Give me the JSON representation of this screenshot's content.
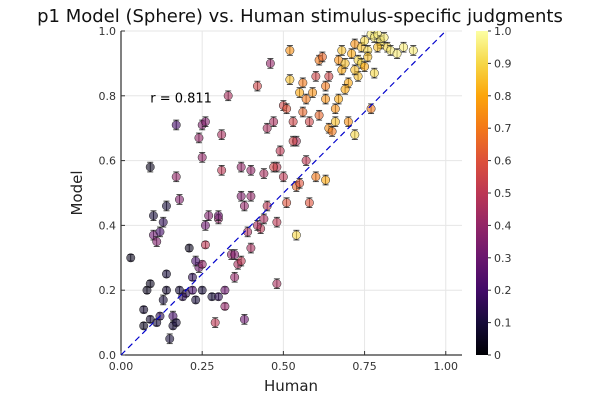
{
  "chart_data": {
    "type": "scatter",
    "title": "p1 Model (Sphere) vs. Human stimulus-specific judgments",
    "xlabel": "Human",
    "ylabel": "Model",
    "xlim": [
      0,
      1.05
    ],
    "ylim": [
      0,
      1
    ],
    "xticks": [
      "0.00",
      "0.25",
      "0.50",
      "0.75",
      "1.00"
    ],
    "yticks": [
      "0.0",
      "0.2",
      "0.4",
      "0.6",
      "0.8",
      "1.0"
    ],
    "colorbar": {
      "range": [
        0,
        1
      ],
      "ticks": [
        "0",
        "0.1",
        "0.2",
        "0.3",
        "0.4",
        "0.5",
        "0.6",
        "0.7",
        "0.8",
        "0.9",
        "1.0"
      ],
      "colormap": "inferno"
    },
    "grid": true,
    "legend": "none",
    "reference_line": {
      "style": "dashed",
      "color": "#0000cc",
      "from": [
        0,
        0
      ],
      "to": [
        1,
        1
      ]
    },
    "annotation": {
      "text": "r = 0.811",
      "x": 0.09,
      "y": 0.78
    },
    "points_fields": [
      "x",
      "y",
      "color_value",
      "error"
    ],
    "points": [
      [
        0.03,
        0.3,
        0.05,
        0.01
      ],
      [
        0.07,
        0.09,
        0.05,
        0.01
      ],
      [
        0.07,
        0.14,
        0.08,
        0.01
      ],
      [
        0.08,
        0.2,
        0.05,
        0.01
      ],
      [
        0.09,
        0.22,
        0.05,
        0.01
      ],
      [
        0.09,
        0.11,
        0.08,
        0.01
      ],
      [
        0.11,
        0.1,
        0.1,
        0.01
      ],
      [
        0.1,
        0.37,
        0.3,
        0.015
      ],
      [
        0.1,
        0.43,
        0.1,
        0.015
      ],
      [
        0.11,
        0.35,
        0.35,
        0.015
      ],
      [
        0.12,
        0.38,
        0.2,
        0.015
      ],
      [
        0.12,
        0.12,
        0.15,
        0.01
      ],
      [
        0.13,
        0.17,
        0.1,
        0.015
      ],
      [
        0.14,
        0.2,
        0.08,
        0.01
      ],
      [
        0.15,
        0.05,
        0.1,
        0.015
      ],
      [
        0.16,
        0.09,
        0.1,
        0.01
      ],
      [
        0.16,
        0.12,
        0.2,
        0.015
      ],
      [
        0.17,
        0.1,
        0.1,
        0.01
      ],
      [
        0.13,
        0.41,
        0.15,
        0.015
      ],
      [
        0.14,
        0.46,
        0.1,
        0.015
      ],
      [
        0.09,
        0.58,
        0.05,
        0.015
      ],
      [
        0.18,
        0.48,
        0.35,
        0.015
      ],
      [
        0.17,
        0.55,
        0.4,
        0.015
      ],
      [
        0.18,
        0.2,
        0.1,
        0.01
      ],
      [
        0.2,
        0.19,
        0.15,
        0.01
      ],
      [
        0.21,
        0.33,
        0.05,
        0.01
      ],
      [
        0.22,
        0.24,
        0.15,
        0.01
      ],
      [
        0.22,
        0.2,
        0.2,
        0.01
      ],
      [
        0.23,
        0.17,
        0.1,
        0.01
      ],
      [
        0.24,
        0.27,
        0.3,
        0.015
      ],
      [
        0.25,
        0.2,
        0.1,
        0.01
      ],
      [
        0.25,
        0.28,
        0.4,
        0.01
      ],
      [
        0.26,
        0.34,
        0.5,
        0.01
      ],
      [
        0.26,
        0.4,
        0.3,
        0.015
      ],
      [
        0.24,
        0.67,
        0.4,
        0.015
      ],
      [
        0.25,
        0.71,
        0.35,
        0.015
      ],
      [
        0.25,
        0.61,
        0.4,
        0.015
      ],
      [
        0.26,
        0.72,
        0.35,
        0.015
      ],
      [
        0.17,
        0.71,
        0.2,
        0.015
      ],
      [
        0.29,
        0.1,
        0.5,
        0.015
      ],
      [
        0.28,
        0.18,
        0.1,
        0.01
      ],
      [
        0.3,
        0.18,
        0.15,
        0.01
      ],
      [
        0.3,
        0.42,
        0.4,
        0.015
      ],
      [
        0.3,
        0.43,
        0.3,
        0.015
      ],
      [
        0.31,
        0.57,
        0.5,
        0.015
      ],
      [
        0.31,
        0.68,
        0.45,
        0.015
      ],
      [
        0.32,
        0.2,
        0.3,
        0.01
      ],
      [
        0.32,
        0.15,
        0.4,
        0.01
      ],
      [
        0.33,
        0.8,
        0.45,
        0.015
      ],
      [
        0.34,
        0.31,
        0.4,
        0.015
      ],
      [
        0.35,
        0.31,
        0.35,
        0.015
      ],
      [
        0.36,
        0.28,
        0.45,
        0.015
      ],
      [
        0.37,
        0.29,
        0.5,
        0.015
      ],
      [
        0.37,
        0.58,
        0.4,
        0.015
      ],
      [
        0.37,
        0.49,
        0.35,
        0.015
      ],
      [
        0.38,
        0.46,
        0.4,
        0.015
      ],
      [
        0.38,
        0.11,
        0.3,
        0.015
      ],
      [
        0.39,
        0.38,
        0.45,
        0.015
      ],
      [
        0.4,
        0.57,
        0.4,
        0.015
      ],
      [
        0.4,
        0.33,
        0.45,
        0.015
      ],
      [
        0.42,
        0.83,
        0.55,
        0.015
      ],
      [
        0.43,
        0.39,
        0.5,
        0.015
      ],
      [
        0.44,
        0.42,
        0.45,
        0.015
      ],
      [
        0.45,
        0.46,
        0.5,
        0.015
      ],
      [
        0.45,
        0.7,
        0.45,
        0.015
      ],
      [
        0.46,
        0.9,
        0.4,
        0.015
      ],
      [
        0.47,
        0.72,
        0.45,
        0.015
      ],
      [
        0.48,
        0.41,
        0.5,
        0.015
      ],
      [
        0.48,
        0.22,
        0.45,
        0.015
      ],
      [
        0.49,
        0.63,
        0.5,
        0.015
      ],
      [
        0.5,
        0.77,
        0.55,
        0.015
      ],
      [
        0.5,
        0.55,
        0.5,
        0.015
      ],
      [
        0.51,
        0.76,
        0.6,
        0.015
      ],
      [
        0.51,
        0.47,
        0.6,
        0.015
      ],
      [
        0.52,
        0.85,
        0.85,
        0.015
      ],
      [
        0.52,
        0.94,
        0.75,
        0.015
      ],
      [
        0.53,
        0.72,
        0.55,
        0.015
      ],
      [
        0.54,
        0.66,
        0.45,
        0.015
      ],
      [
        0.54,
        0.37,
        0.9,
        0.015
      ],
      [
        0.54,
        0.52,
        0.65,
        0.015
      ],
      [
        0.55,
        0.53,
        0.6,
        0.015
      ],
      [
        0.55,
        0.81,
        0.8,
        0.015
      ],
      [
        0.56,
        0.75,
        0.65,
        0.015
      ],
      [
        0.56,
        0.84,
        0.7,
        0.015
      ],
      [
        0.57,
        0.79,
        0.7,
        0.015
      ],
      [
        0.58,
        0.47,
        0.6,
        0.015
      ],
      [
        0.58,
        0.72,
        0.55,
        0.015
      ],
      [
        0.59,
        0.81,
        0.75,
        0.015
      ],
      [
        0.6,
        0.86,
        0.55,
        0.015
      ],
      [
        0.6,
        0.55,
        0.7,
        0.015
      ],
      [
        0.61,
        0.91,
        0.7,
        0.015
      ],
      [
        0.62,
        0.92,
        0.65,
        0.015
      ],
      [
        0.63,
        0.79,
        0.75,
        0.015
      ],
      [
        0.63,
        0.54,
        0.8,
        0.015
      ],
      [
        0.64,
        0.86,
        0.55,
        0.015
      ],
      [
        0.64,
        0.7,
        0.75,
        0.015
      ],
      [
        0.65,
        0.69,
        0.7,
        0.015
      ],
      [
        0.66,
        0.72,
        0.85,
        0.015
      ],
      [
        0.66,
        0.76,
        0.75,
        0.015
      ],
      [
        0.67,
        0.79,
        0.8,
        0.015
      ],
      [
        0.67,
        0.91,
        0.75,
        0.015
      ],
      [
        0.68,
        0.88,
        0.8,
        0.015
      ],
      [
        0.68,
        0.94,
        0.85,
        0.015
      ],
      [
        0.69,
        0.9,
        0.85,
        0.015
      ],
      [
        0.7,
        0.84,
        0.8,
        0.015
      ],
      [
        0.7,
        0.72,
        0.75,
        0.015
      ],
      [
        0.71,
        0.93,
        0.8,
        0.015
      ],
      [
        0.72,
        0.68,
        0.9,
        0.015
      ],
      [
        0.72,
        0.96,
        0.75,
        0.015
      ],
      [
        0.73,
        0.91,
        0.9,
        0.015
      ],
      [
        0.73,
        0.86,
        0.85,
        0.015
      ],
      [
        0.74,
        0.95,
        0.85,
        0.015
      ],
      [
        0.74,
        0.9,
        0.9,
        0.015
      ],
      [
        0.75,
        0.89,
        0.8,
        0.015
      ],
      [
        0.76,
        0.94,
        0.9,
        0.015
      ],
      [
        0.77,
        0.99,
        0.95,
        0.015
      ],
      [
        0.77,
        0.76,
        0.7,
        0.015
      ],
      [
        0.78,
        0.98,
        0.95,
        0.015
      ],
      [
        0.78,
        0.87,
        0.9,
        0.015
      ],
      [
        0.79,
        0.99,
        0.95,
        0.015
      ],
      [
        0.8,
        0.96,
        0.9,
        0.015
      ],
      [
        0.8,
        0.97,
        0.95,
        0.015
      ],
      [
        0.81,
        0.98,
        0.95,
        0.015
      ],
      [
        0.82,
        0.95,
        0.9,
        0.015
      ],
      [
        0.83,
        0.94,
        0.95,
        0.015
      ],
      [
        0.85,
        0.93,
        0.95,
        0.015
      ],
      [
        0.87,
        0.95,
        0.95,
        0.015
      ],
      [
        0.9,
        0.94,
        0.95,
        0.015
      ],
      [
        0.79,
        0.95,
        0.85,
        0.015
      ],
      [
        0.76,
        0.92,
        0.85,
        0.015
      ],
      [
        0.63,
        0.83,
        0.7,
        0.015
      ],
      [
        0.57,
        0.6,
        0.5,
        0.015
      ],
      [
        0.48,
        0.58,
        0.5,
        0.015
      ],
      [
        0.44,
        0.56,
        0.45,
        0.015
      ],
      [
        0.4,
        0.49,
        0.4,
        0.015
      ],
      [
        0.27,
        0.43,
        0.35,
        0.015
      ],
      [
        0.23,
        0.29,
        0.2,
        0.015
      ],
      [
        0.19,
        0.18,
        0.15,
        0.01
      ],
      [
        0.14,
        0.25,
        0.1,
        0.01
      ],
      [
        0.35,
        0.24,
        0.4,
        0.015
      ],
      [
        0.42,
        0.4,
        0.45,
        0.015
      ],
      [
        0.47,
        0.58,
        0.55,
        0.015
      ],
      [
        0.53,
        0.66,
        0.55,
        0.015
      ],
      [
        0.61,
        0.74,
        0.65,
        0.015
      ],
      [
        0.69,
        0.82,
        0.8,
        0.015
      ],
      [
        0.72,
        0.88,
        0.85,
        0.015
      ],
      [
        0.75,
        0.97,
        0.9,
        0.015
      ]
    ]
  }
}
